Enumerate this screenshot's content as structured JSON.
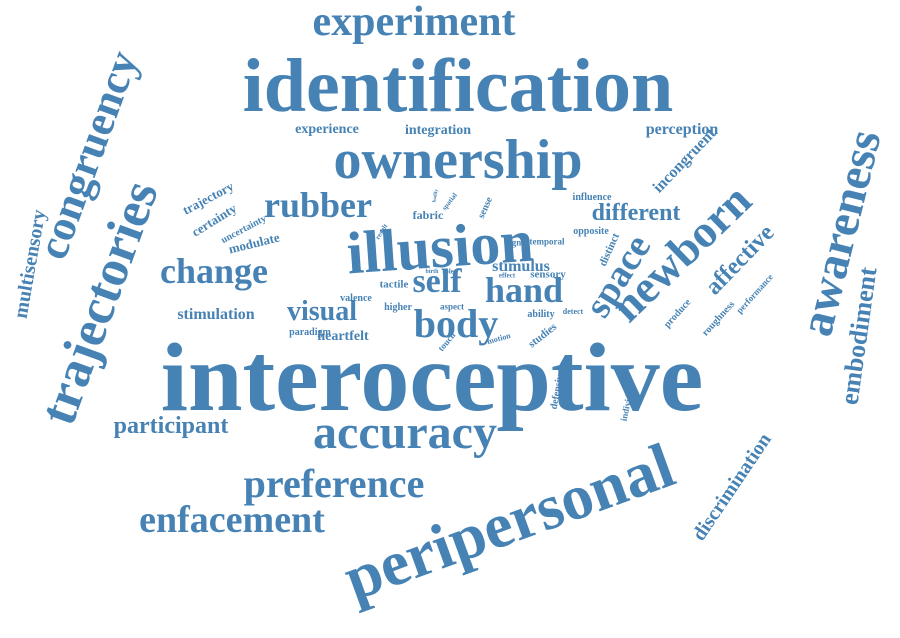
{
  "color": "#4682b4",
  "words": [
    "interoceptive",
    "peripersonal",
    "identification",
    "illusion",
    "ownership",
    "trajectories",
    "awareness",
    "newborn",
    "accuracy",
    "congruency",
    "experiment",
    "preference",
    "enfacement",
    "space",
    "body",
    "change",
    "rubber",
    "hand",
    "self",
    "embodiment",
    "visual",
    "participant",
    "multisensory",
    "affective",
    "discrimination",
    "different",
    "incongruent",
    "stimulation",
    "heartfelt",
    "stimulus",
    "experience",
    "integration",
    "perception",
    "trajectory",
    "certainty",
    "uncertainty",
    "modulate",
    "fabric",
    "influence",
    "opposite",
    "distinct",
    "signal",
    "temporal",
    "sense",
    "spatial",
    "result",
    "sensory",
    "tactile",
    "valence",
    "higher",
    "aspect",
    "ability",
    "detect",
    "paradigm",
    "touch",
    "motion",
    "studies",
    "defensive",
    "individual",
    "produce",
    "roughness",
    "performance",
    "birth",
    "role",
    "effect",
    "bodily"
  ]
}
